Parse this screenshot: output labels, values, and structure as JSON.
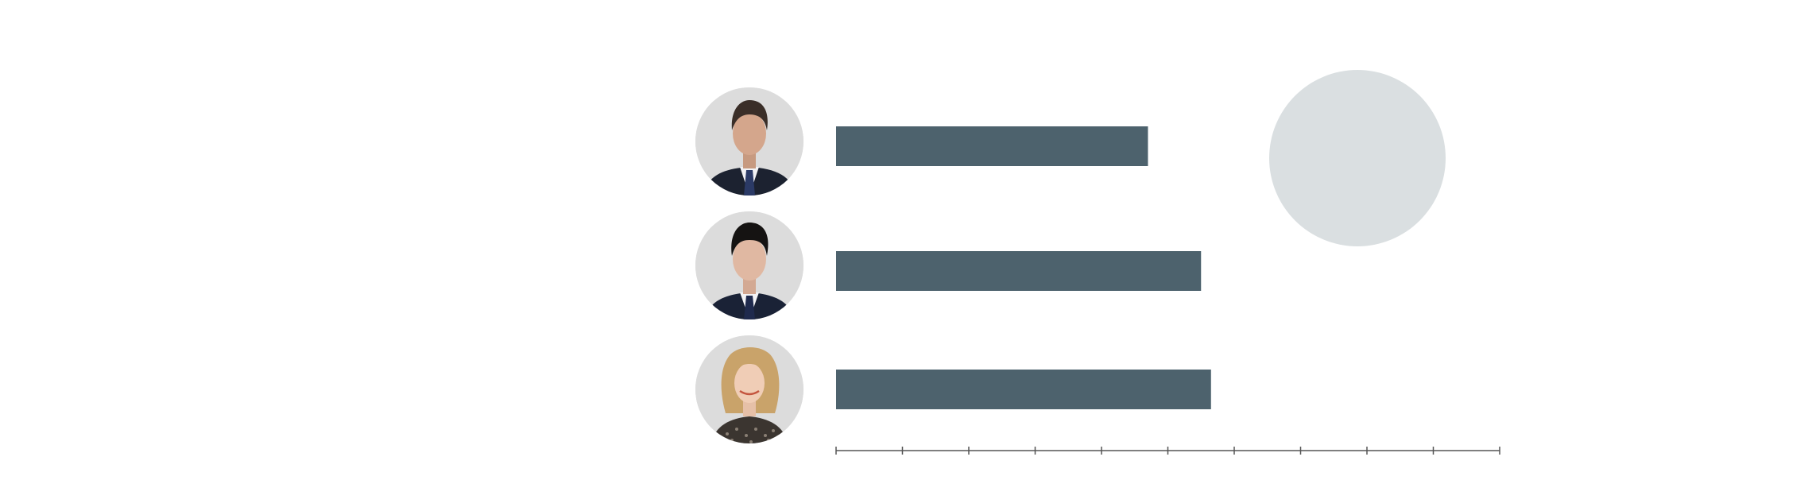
{
  "chart_data": {
    "type": "bar",
    "orientation": "horizontal",
    "categories": [
      "",
      "",
      ""
    ],
    "values": [
      4.7,
      5.5,
      5.65
    ],
    "xlim": [
      0,
      10
    ],
    "xticks": [
      0,
      1,
      2,
      3,
      4,
      5,
      6,
      7,
      8,
      9,
      10
    ],
    "tick_labels_visible": false,
    "bar_color": "#4d626d",
    "grid": false,
    "legend": "none",
    "title": "",
    "xlabel": "",
    "ylabel": ""
  },
  "avatars": [
    {
      "icon": "man-dark-hair-portrait-icon",
      "bg": "#dcdcdc",
      "hair": "#3a2e28",
      "suit": "#1c2230",
      "tie": "#2b3a66"
    },
    {
      "icon": "man-black-hair-portrait-icon",
      "bg": "#dcdcdc",
      "hair": "#151312",
      "suit": "#1a2236",
      "tie": "#1f2a4d"
    },
    {
      "icon": "woman-blonde-portrait-icon",
      "bg": "#dcdcdc",
      "hair": "#c9a36a",
      "suit": "#3b3530",
      "tie": ""
    }
  ],
  "decoration": {
    "icon": "grey-circle-badge",
    "color": "#dadfe1"
  },
  "axis_color": "#555555"
}
